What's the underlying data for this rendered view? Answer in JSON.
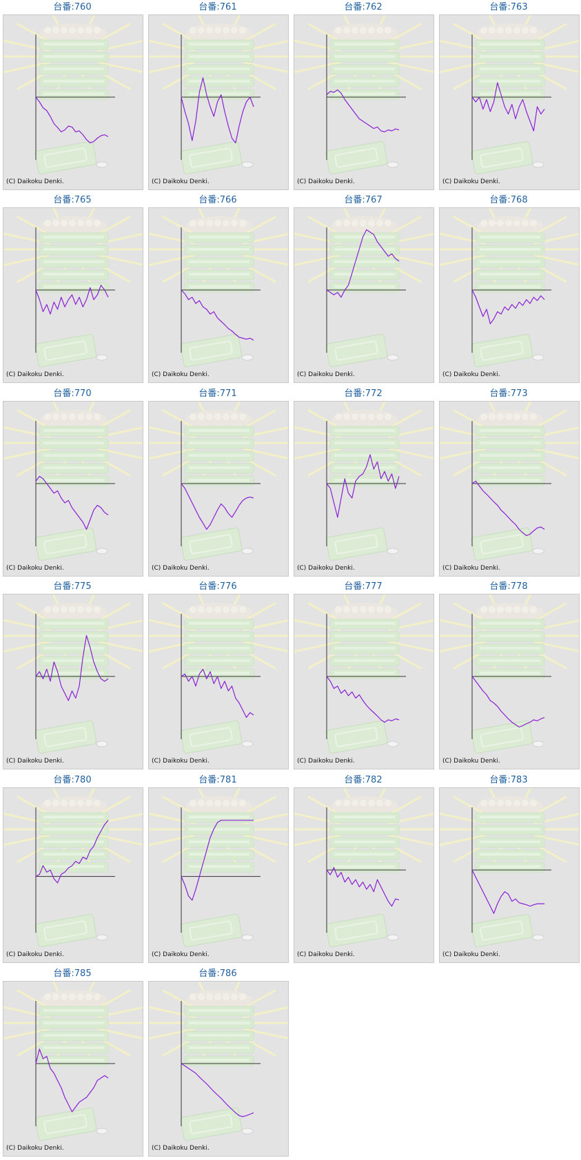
{
  "units": [
    {
      "label": "台番:760",
      "copyright": "(C) Daikoku Denki."
    },
    {
      "label": "台番:761",
      "copyright": "(C) Daikoku Denki."
    },
    {
      "label": "台番:762",
      "copyright": "(C) Daikoku Denki."
    },
    {
      "label": "台番:763",
      "copyright": "(C) Daikoku Denki."
    },
    {
      "label": "台番:765",
      "copyright": "(C) Daikoku Denki."
    },
    {
      "label": "台番:766",
      "copyright": "(C) Daikoku Denki."
    },
    {
      "label": "台番:767",
      "copyright": "(C) Daikoku Denki."
    },
    {
      "label": "台番:768",
      "copyright": "(C) Daikoku Denki."
    },
    {
      "label": "台番:770",
      "copyright": "(C) Daikoku Denki."
    },
    {
      "label": "台番:771",
      "copyright": "(C) Daikoku Denki."
    },
    {
      "label": "台番:772",
      "copyright": "(C) Daikoku Denki."
    },
    {
      "label": "台番:773",
      "copyright": "(C) Daikoku Denki."
    },
    {
      "label": "台番:775",
      "copyright": "(C) Daikoku Denki."
    },
    {
      "label": "台番:776",
      "copyright": "(C) Daikoku Denki."
    },
    {
      "label": "台番:777",
      "copyright": "(C) Daikoku Denki."
    },
    {
      "label": "台番:778",
      "copyright": "(C) Daikoku Denki."
    },
    {
      "label": "台番:780",
      "copyright": "(C) Daikoku Denki."
    },
    {
      "label": "台番:781",
      "copyright": "(C) Daikoku Denki."
    },
    {
      "label": "台番:782",
      "copyright": "(C) Daikoku Denki."
    },
    {
      "label": "台番:783",
      "copyright": "(C) Daikoku Denki."
    },
    {
      "label": "台番:785",
      "copyright": "(C) Daikoku Denki."
    },
    {
      "label": "台番:786",
      "copyright": "(C) Daikoku Denki."
    }
  ],
  "colors": {
    "title": "#1f5f9f",
    "line": "#8a1fd6",
    "axis": "#333333",
    "panel_bg": "#e3e3e3",
    "panel_border": "#c8c8c8"
  },
  "chart_data": [
    {
      "type": "line",
      "title": "台番:760",
      "x": [
        0,
        0.05,
        0.1,
        0.15,
        0.2,
        0.25,
        0.3,
        0.35,
        0.4,
        0.45,
        0.5,
        0.55,
        0.6,
        0.65,
        0.7,
        0.75,
        0.8,
        0.85,
        0.9,
        0.95,
        1.0
      ],
      "y": [
        0,
        -0.1,
        -0.22,
        -0.28,
        -0.4,
        -0.55,
        -0.63,
        -0.72,
        -0.68,
        -0.6,
        -0.62,
        -0.72,
        -0.7,
        -0.78,
        -0.88,
        -0.95,
        -0.92,
        -0.85,
        -0.8,
        -0.78,
        -0.82
      ],
      "ylim": [
        -1.3,
        1.3
      ]
    },
    {
      "type": "line",
      "title": "台番:761",
      "x": [
        0,
        0.05,
        0.1,
        0.15,
        0.2,
        0.25,
        0.3,
        0.35,
        0.4,
        0.45,
        0.5,
        0.55,
        0.6,
        0.65,
        0.7,
        0.75,
        0.8,
        0.85,
        0.9,
        0.95,
        1.0
      ],
      "y": [
        0,
        -0.3,
        -0.55,
        -0.9,
        -0.5,
        0.1,
        0.4,
        0.05,
        -0.2,
        -0.4,
        -0.1,
        0.05,
        -0.3,
        -0.6,
        -0.85,
        -0.95,
        -0.6,
        -0.3,
        -0.1,
        0.0,
        -0.2
      ],
      "ylim": [
        -1.3,
        1.3
      ]
    },
    {
      "type": "line",
      "title": "台番:762",
      "x": [
        0,
        0.05,
        0.1,
        0.15,
        0.2,
        0.25,
        0.3,
        0.35,
        0.4,
        0.45,
        0.5,
        0.55,
        0.6,
        0.65,
        0.7,
        0.75,
        0.8,
        0.85,
        0.9,
        0.95,
        1.0
      ],
      "y": [
        0.05,
        0.12,
        0.1,
        0.15,
        0.08,
        -0.05,
        -0.15,
        -0.25,
        -0.35,
        -0.45,
        -0.5,
        -0.55,
        -0.6,
        -0.65,
        -0.62,
        -0.7,
        -0.72,
        -0.68,
        -0.7,
        -0.66,
        -0.68
      ],
      "ylim": [
        -1.3,
        1.3
      ]
    },
    {
      "type": "line",
      "title": "台番:763",
      "x": [
        0,
        0.05,
        0.1,
        0.15,
        0.2,
        0.25,
        0.3,
        0.35,
        0.4,
        0.45,
        0.5,
        0.55,
        0.6,
        0.65,
        0.7,
        0.75,
        0.8,
        0.85,
        0.9,
        0.95,
        1.0
      ],
      "y": [
        0,
        -0.1,
        0.0,
        -0.25,
        -0.05,
        -0.3,
        -0.1,
        0.3,
        0.05,
        -0.2,
        -0.35,
        -0.15,
        -0.45,
        -0.2,
        -0.05,
        -0.3,
        -0.5,
        -0.7,
        -0.2,
        -0.35,
        -0.25
      ],
      "ylim": [
        -1.3,
        1.3
      ]
    },
    {
      "type": "line",
      "title": "台番:765",
      "x": [
        0,
        0.05,
        0.1,
        0.15,
        0.2,
        0.25,
        0.3,
        0.35,
        0.4,
        0.45,
        0.5,
        0.55,
        0.6,
        0.65,
        0.7,
        0.75,
        0.8,
        0.85,
        0.9,
        0.95,
        1.0
      ],
      "y": [
        0,
        -0.2,
        -0.45,
        -0.3,
        -0.5,
        -0.25,
        -0.4,
        -0.15,
        -0.35,
        -0.2,
        -0.1,
        -0.3,
        -0.15,
        -0.35,
        -0.2,
        0.05,
        -0.2,
        -0.1,
        0.1,
        0.0,
        -0.15
      ],
      "ylim": [
        -1.3,
        1.3
      ]
    },
    {
      "type": "line",
      "title": "台番:766",
      "x": [
        0,
        0.05,
        0.1,
        0.15,
        0.2,
        0.25,
        0.3,
        0.35,
        0.4,
        0.45,
        0.5,
        0.55,
        0.6,
        0.65,
        0.7,
        0.75,
        0.8,
        0.85,
        0.9,
        0.95,
        1.0
      ],
      "y": [
        0,
        -0.08,
        -0.2,
        -0.15,
        -0.28,
        -0.22,
        -0.35,
        -0.4,
        -0.5,
        -0.45,
        -0.58,
        -0.65,
        -0.72,
        -0.8,
        -0.85,
        -0.92,
        -0.98,
        -1.0,
        -1.02,
        -1.0,
        -1.04
      ],
      "ylim": [
        -1.3,
        1.3
      ]
    },
    {
      "type": "line",
      "title": "台番:767",
      "x": [
        0,
        0.05,
        0.1,
        0.15,
        0.2,
        0.25,
        0.3,
        0.35,
        0.4,
        0.45,
        0.5,
        0.55,
        0.6,
        0.65,
        0.7,
        0.75,
        0.8,
        0.85,
        0.9,
        0.95,
        1.0
      ],
      "y": [
        0,
        -0.05,
        -0.1,
        -0.05,
        -0.15,
        0.0,
        0.1,
        0.35,
        0.6,
        0.85,
        1.1,
        1.25,
        1.2,
        1.15,
        1.0,
        0.9,
        0.8,
        0.7,
        0.75,
        0.65,
        0.6
      ],
      "ylim": [
        -1.3,
        1.3
      ]
    },
    {
      "type": "line",
      "title": "台番:768",
      "x": [
        0,
        0.05,
        0.1,
        0.15,
        0.2,
        0.25,
        0.3,
        0.35,
        0.4,
        0.45,
        0.5,
        0.55,
        0.6,
        0.65,
        0.7,
        0.75,
        0.8,
        0.85,
        0.9,
        0.95,
        1.0
      ],
      "y": [
        0,
        -0.15,
        -0.35,
        -0.55,
        -0.4,
        -0.7,
        -0.6,
        -0.45,
        -0.5,
        -0.35,
        -0.42,
        -0.3,
        -0.38,
        -0.25,
        -0.32,
        -0.2,
        -0.28,
        -0.15,
        -0.22,
        -0.12,
        -0.2
      ],
      "ylim": [
        -1.3,
        1.3
      ]
    },
    {
      "type": "line",
      "title": "台番:770",
      "x": [
        0,
        0.05,
        0.1,
        0.15,
        0.2,
        0.25,
        0.3,
        0.35,
        0.4,
        0.45,
        0.5,
        0.55,
        0.6,
        0.65,
        0.7,
        0.75,
        0.8,
        0.85,
        0.9,
        0.95,
        1.0
      ],
      "y": [
        0.05,
        0.15,
        0.1,
        0.0,
        -0.1,
        -0.2,
        -0.15,
        -0.3,
        -0.4,
        -0.35,
        -0.5,
        -0.6,
        -0.7,
        -0.8,
        -0.95,
        -0.75,
        -0.55,
        -0.45,
        -0.5,
        -0.6,
        -0.65
      ],
      "ylim": [
        -1.3,
        1.3
      ]
    },
    {
      "type": "line",
      "title": "台番:771",
      "x": [
        0,
        0.05,
        0.1,
        0.15,
        0.2,
        0.25,
        0.3,
        0.35,
        0.4,
        0.45,
        0.5,
        0.55,
        0.6,
        0.65,
        0.7,
        0.75,
        0.8,
        0.85,
        0.9,
        0.95,
        1.0
      ],
      "y": [
        0,
        -0.1,
        -0.25,
        -0.4,
        -0.55,
        -0.7,
        -0.82,
        -0.95,
        -0.85,
        -0.7,
        -0.55,
        -0.42,
        -0.5,
        -0.62,
        -0.7,
        -0.58,
        -0.45,
        -0.35,
        -0.3,
        -0.28,
        -0.3
      ],
      "ylim": [
        -1.3,
        1.3
      ]
    },
    {
      "type": "line",
      "title": "台番:772",
      "x": [
        0,
        0.05,
        0.1,
        0.15,
        0.2,
        0.25,
        0.3,
        0.35,
        0.4,
        0.45,
        0.5,
        0.55,
        0.6,
        0.65,
        0.7,
        0.75,
        0.8,
        0.85,
        0.9,
        0.95,
        1.0
      ],
      "y": [
        0,
        -0.1,
        -0.4,
        -0.7,
        -0.3,
        0.1,
        -0.2,
        -0.3,
        0.05,
        0.15,
        0.2,
        0.35,
        0.6,
        0.3,
        0.45,
        0.1,
        0.25,
        0.05,
        0.2,
        -0.1,
        0.15
      ],
      "ylim": [
        -1.3,
        1.3
      ]
    },
    {
      "type": "line",
      "title": "台番:773",
      "x": [
        0,
        0.05,
        0.1,
        0.15,
        0.2,
        0.25,
        0.3,
        0.35,
        0.4,
        0.45,
        0.5,
        0.55,
        0.6,
        0.65,
        0.7,
        0.75,
        0.8,
        0.85,
        0.9,
        0.95,
        1.0
      ],
      "y": [
        0,
        0.05,
        -0.05,
        -0.15,
        -0.22,
        -0.3,
        -0.38,
        -0.45,
        -0.55,
        -0.62,
        -0.7,
        -0.78,
        -0.85,
        -0.95,
        -1.02,
        -1.08,
        -1.05,
        -0.98,
        -0.92,
        -0.9,
        -0.95
      ],
      "ylim": [
        -1.3,
        1.3
      ]
    },
    {
      "type": "line",
      "title": "台番:775",
      "x": [
        0,
        0.05,
        0.1,
        0.15,
        0.2,
        0.25,
        0.3,
        0.35,
        0.4,
        0.45,
        0.5,
        0.55,
        0.6,
        0.65,
        0.7,
        0.75,
        0.8,
        0.85,
        0.9,
        0.95,
        1.0
      ],
      "y": [
        0,
        0.1,
        -0.05,
        0.15,
        -0.1,
        0.3,
        0.1,
        -0.2,
        -0.35,
        -0.5,
        -0.3,
        -0.45,
        -0.2,
        0.4,
        0.85,
        0.6,
        0.3,
        0.1,
        -0.05,
        -0.1,
        -0.05
      ],
      "ylim": [
        -1.3,
        1.3
      ]
    },
    {
      "type": "line",
      "title": "台番:776",
      "x": [
        0,
        0.05,
        0.1,
        0.15,
        0.2,
        0.25,
        0.3,
        0.35,
        0.4,
        0.45,
        0.5,
        0.55,
        0.6,
        0.65,
        0.7,
        0.75,
        0.8,
        0.85,
        0.9,
        0.95,
        1.0
      ],
      "y": [
        0,
        0.05,
        -0.1,
        0.0,
        -0.2,
        0.05,
        0.15,
        -0.05,
        0.1,
        -0.15,
        0.0,
        -0.25,
        -0.1,
        -0.3,
        -0.2,
        -0.45,
        -0.55,
        -0.7,
        -0.85,
        -0.75,
        -0.8
      ],
      "ylim": [
        -1.3,
        1.3
      ]
    },
    {
      "type": "line",
      "title": "台番:777",
      "x": [
        0,
        0.05,
        0.1,
        0.15,
        0.2,
        0.25,
        0.3,
        0.35,
        0.4,
        0.45,
        0.5,
        0.55,
        0.6,
        0.65,
        0.7,
        0.75,
        0.8,
        0.85,
        0.9,
        0.95,
        1.0
      ],
      "y": [
        0,
        -0.1,
        -0.25,
        -0.2,
        -0.35,
        -0.28,
        -0.4,
        -0.32,
        -0.45,
        -0.38,
        -0.5,
        -0.6,
        -0.68,
        -0.75,
        -0.82,
        -0.9,
        -0.95,
        -0.9,
        -0.92,
        -0.88,
        -0.9
      ],
      "ylim": [
        -1.3,
        1.3
      ]
    },
    {
      "type": "line",
      "title": "台番:778",
      "x": [
        0,
        0.05,
        0.1,
        0.15,
        0.2,
        0.25,
        0.3,
        0.35,
        0.4,
        0.45,
        0.5,
        0.55,
        0.6,
        0.65,
        0.7,
        0.75,
        0.8,
        0.85,
        0.9,
        0.95,
        1.0
      ],
      "y": [
        0,
        -0.1,
        -0.2,
        -0.3,
        -0.38,
        -0.5,
        -0.55,
        -0.62,
        -0.72,
        -0.8,
        -0.88,
        -0.95,
        -1.0,
        -1.05,
        -1.02,
        -0.98,
        -0.95,
        -0.9,
        -0.92,
        -0.88,
        -0.85
      ],
      "ylim": [
        -1.3,
        1.3
      ]
    },
    {
      "type": "line",
      "title": "台番:780",
      "x": [
        0,
        0.05,
        0.1,
        0.15,
        0.2,
        0.25,
        0.3,
        0.35,
        0.4,
        0.45,
        0.5,
        0.55,
        0.6,
        0.65,
        0.7,
        0.75,
        0.8,
        0.85,
        0.9,
        0.95,
        1.0
      ],
      "y": [
        0,
        0.05,
        0.25,
        0.1,
        0.15,
        -0.05,
        -0.15,
        0.05,
        0.1,
        0.2,
        0.25,
        0.35,
        0.3,
        0.45,
        0.4,
        0.6,
        0.7,
        0.9,
        1.05,
        1.2,
        1.3
      ],
      "ylim": [
        -1.3,
        1.6
      ]
    },
    {
      "type": "line",
      "title": "台番:781",
      "x": [
        0,
        0.05,
        0.1,
        0.15,
        0.2,
        0.25,
        0.3,
        0.35,
        0.4,
        0.45,
        0.5,
        0.55,
        0.6,
        0.65,
        0.7,
        0.75,
        0.8,
        0.85,
        0.9,
        0.95,
        1.0
      ],
      "y": [
        0,
        -0.2,
        -0.45,
        -0.55,
        -0.3,
        0.0,
        0.3,
        0.6,
        0.9,
        1.1,
        1.25,
        1.3,
        1.3,
        1.3,
        1.3,
        1.3,
        1.3,
        1.3,
        1.3,
        1.3,
        1.3
      ],
      "ylim": [
        -1.3,
        1.6
      ]
    },
    {
      "type": "line",
      "title": "台番:782",
      "x": [
        0,
        0.05,
        0.1,
        0.15,
        0.2,
        0.25,
        0.3,
        0.35,
        0.4,
        0.45,
        0.5,
        0.55,
        0.6,
        0.65,
        0.7,
        0.75,
        0.8,
        0.85,
        0.9,
        0.95,
        1.0
      ],
      "y": [
        0,
        -0.1,
        0.05,
        -0.15,
        -0.05,
        -0.25,
        -0.15,
        -0.3,
        -0.2,
        -0.35,
        -0.25,
        -0.4,
        -0.3,
        -0.45,
        -0.2,
        -0.35,
        -0.5,
        -0.65,
        -0.75,
        -0.6,
        -0.62
      ],
      "ylim": [
        -1.3,
        1.3
      ]
    },
    {
      "type": "line",
      "title": "台番:783",
      "x": [
        0,
        0.05,
        0.1,
        0.15,
        0.2,
        0.25,
        0.3,
        0.35,
        0.4,
        0.45,
        0.5,
        0.55,
        0.6,
        0.65,
        0.7,
        0.75,
        0.8,
        0.85,
        0.9,
        0.95,
        1.0
      ],
      "y": [
        0,
        -0.15,
        -0.3,
        -0.45,
        -0.6,
        -0.75,
        -0.9,
        -0.7,
        -0.55,
        -0.45,
        -0.5,
        -0.65,
        -0.6,
        -0.68,
        -0.7,
        -0.72,
        -0.75,
        -0.72,
        -0.7,
        -0.7,
        -0.7
      ],
      "ylim": [
        -1.3,
        1.3
      ]
    },
    {
      "type": "line",
      "title": "台番:785",
      "x": [
        0,
        0.05,
        0.1,
        0.15,
        0.2,
        0.25,
        0.3,
        0.35,
        0.4,
        0.45,
        0.5,
        0.55,
        0.6,
        0.65,
        0.7,
        0.75,
        0.8,
        0.85,
        0.9,
        0.95,
        1.0
      ],
      "y": [
        0,
        0.3,
        0.1,
        0.15,
        -0.1,
        -0.2,
        -0.35,
        -0.5,
        -0.7,
        -0.85,
        -1.0,
        -0.9,
        -0.8,
        -0.75,
        -0.7,
        -0.6,
        -0.5,
        -0.35,
        -0.3,
        -0.25,
        -0.3
      ],
      "ylim": [
        -1.3,
        1.3
      ]
    },
    {
      "type": "line",
      "title": "台番:786",
      "x": [
        0,
        0.05,
        0.1,
        0.15,
        0.2,
        0.25,
        0.3,
        0.35,
        0.4,
        0.45,
        0.5,
        0.55,
        0.6,
        0.65,
        0.7,
        0.75,
        0.8,
        0.85,
        0.9,
        0.95,
        1.0
      ],
      "y": [
        0,
        -0.05,
        -0.1,
        -0.15,
        -0.2,
        -0.28,
        -0.35,
        -0.42,
        -0.5,
        -0.58,
        -0.65,
        -0.72,
        -0.8,
        -0.88,
        -0.95,
        -1.02,
        -1.08,
        -1.1,
        -1.08,
        -1.05,
        -1.02
      ],
      "ylim": [
        -1.3,
        1.3
      ]
    }
  ]
}
